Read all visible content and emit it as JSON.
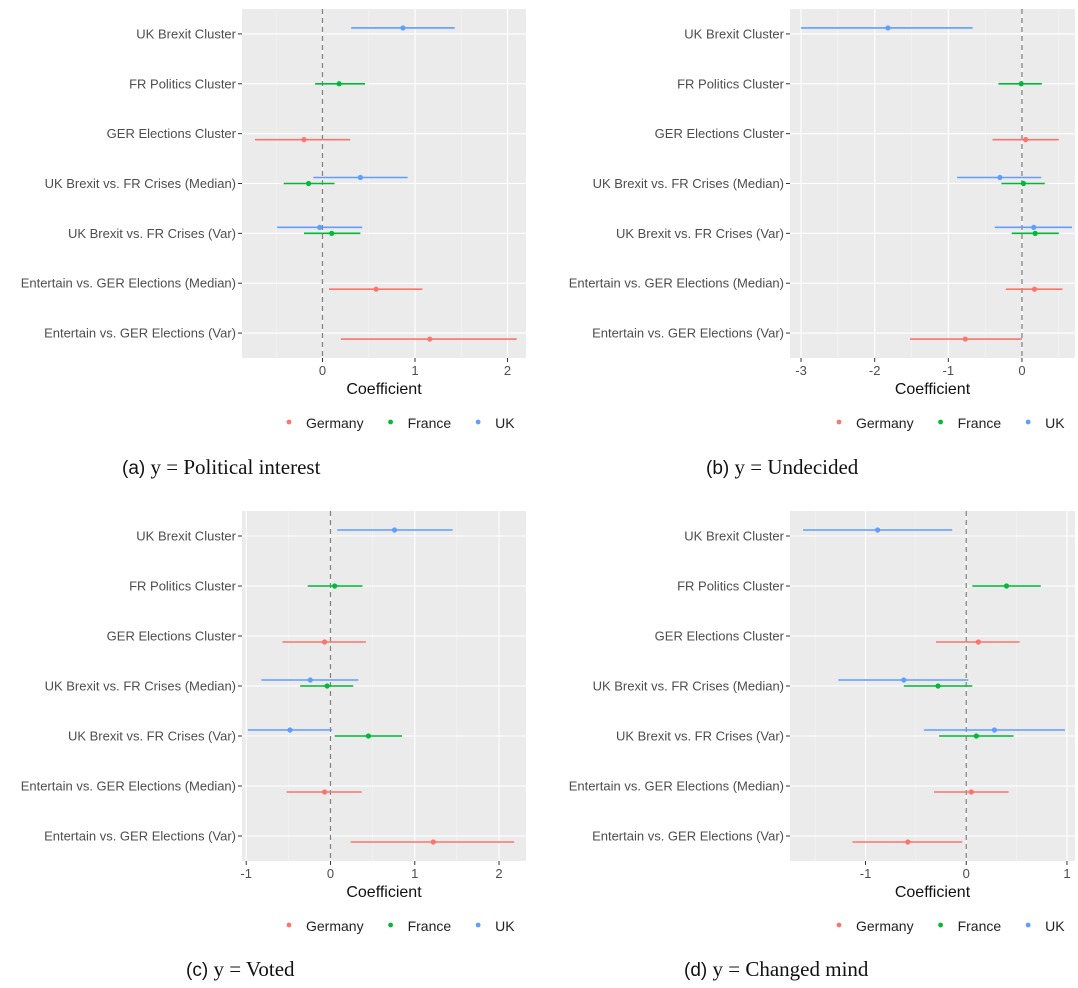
{
  "legend": [
    {
      "name": "Germany",
      "color": "#F8766D"
    },
    {
      "name": "France",
      "color": "#00BA38"
    },
    {
      "name": "UK",
      "color": "#619CFF"
    }
  ],
  "chart_data": [
    {
      "type": "scatter",
      "caption_prefix": "(a)",
      "caption": "y = Political interest",
      "xlabel": "Coefficient",
      "xlim": [
        -0.87,
        2.2
      ],
      "xticks": [
        0,
        1,
        2
      ],
      "reference_line": 0,
      "categories": [
        "UK Brexit Cluster",
        "FR Politics Cluster",
        "GER Elections Cluster",
        "UK Brexit vs. FR Crises (Median)",
        "UK Brexit vs. FR Crises (Var)",
        "Entertain vs. GER Elections (Median)",
        "Entertain vs. GER Elections (Var)"
      ],
      "series": [
        {
          "name": "Germany",
          "points": [
            {
              "category": "GER Elections Cluster",
              "estimate": -0.2,
              "low": -0.73,
              "high": 0.3
            },
            {
              "category": "Entertain vs. GER Elections (Median)",
              "estimate": 0.58,
              "low": 0.07,
              "high": 1.08
            },
            {
              "category": "Entertain vs. GER Elections (Var)",
              "estimate": 1.16,
              "low": 0.2,
              "high": 2.1
            }
          ]
        },
        {
          "name": "France",
          "points": [
            {
              "category": "FR Politics Cluster",
              "estimate": 0.18,
              "low": -0.08,
              "high": 0.46
            },
            {
              "category": "UK Brexit vs. FR Crises (Median)",
              "estimate": -0.15,
              "low": -0.42,
              "high": 0.13
            },
            {
              "category": "UK Brexit vs. FR Crises (Var)",
              "estimate": 0.1,
              "low": -0.2,
              "high": 0.41
            }
          ]
        },
        {
          "name": "UK",
          "points": [
            {
              "category": "UK Brexit Cluster",
              "estimate": 0.87,
              "low": 0.31,
              "high": 1.43
            },
            {
              "category": "UK Brexit vs. FR Crises (Median)",
              "estimate": 0.41,
              "low": -0.1,
              "high": 0.92
            },
            {
              "category": "UK Brexit vs. FR Crises (Var)",
              "estimate": -0.03,
              "low": -0.49,
              "high": 0.43
            }
          ]
        }
      ]
    },
    {
      "type": "scatter",
      "caption_prefix": "(b)",
      "caption": "y = Undecided",
      "xlabel": "Coefficient",
      "xlim": [
        -3.15,
        0.72
      ],
      "xticks": [
        -3,
        -2,
        -1,
        0
      ],
      "reference_line": 0,
      "categories": [
        "UK Brexit Cluster",
        "FR Politics Cluster",
        "GER Elections Cluster",
        "UK Brexit vs. FR Crises (Median)",
        "UK Brexit vs. FR Crises (Var)",
        "Entertain vs. GER Elections (Median)",
        "Entertain vs. GER Elections (Var)"
      ],
      "series": [
        {
          "name": "Germany",
          "points": [
            {
              "category": "GER Elections Cluster",
              "estimate": 0.05,
              "low": -0.4,
              "high": 0.5
            },
            {
              "category": "Entertain vs. GER Elections (Median)",
              "estimate": 0.17,
              "low": -0.22,
              "high": 0.55
            },
            {
              "category": "Entertain vs. GER Elections (Var)",
              "estimate": -0.77,
              "low": -1.52,
              "high": 0.0
            }
          ]
        },
        {
          "name": "France",
          "points": [
            {
              "category": "FR Politics Cluster",
              "estimate": -0.01,
              "low": -0.32,
              "high": 0.27
            },
            {
              "category": "UK Brexit vs. FR Crises (Median)",
              "estimate": 0.02,
              "low": -0.28,
              "high": 0.31
            },
            {
              "category": "UK Brexit vs. FR Crises (Var)",
              "estimate": 0.18,
              "low": -0.14,
              "high": 0.5
            }
          ]
        },
        {
          "name": "UK",
          "points": [
            {
              "category": "UK Brexit Cluster",
              "estimate": -1.82,
              "low": -3.0,
              "high": -0.67
            },
            {
              "category": "UK Brexit vs. FR Crises (Median)",
              "estimate": -0.3,
              "low": -0.88,
              "high": 0.26
            },
            {
              "category": "UK Brexit vs. FR Crises (Var)",
              "estimate": 0.16,
              "low": -0.37,
              "high": 0.68
            }
          ]
        }
      ]
    },
    {
      "type": "scatter",
      "caption_prefix": "(c)",
      "caption": "y = Voted",
      "xlabel": "Coefficient",
      "xlim": [
        -1.05,
        2.32
      ],
      "xticks": [
        -1,
        0,
        1,
        2
      ],
      "reference_line": 0,
      "categories": [
        "UK Brexit Cluster",
        "FR Politics Cluster",
        "GER Elections Cluster",
        "UK Brexit vs. FR Crises (Median)",
        "UK Brexit vs. FR Crises (Var)",
        "Entertain vs. GER Elections (Median)",
        "Entertain vs. GER Elections (Var)"
      ],
      "series": [
        {
          "name": "Germany",
          "points": [
            {
              "category": "GER Elections Cluster",
              "estimate": -0.07,
              "low": -0.57,
              "high": 0.42
            },
            {
              "category": "Entertain vs. GER Elections (Median)",
              "estimate": -0.07,
              "low": -0.52,
              "high": 0.37
            },
            {
              "category": "Entertain vs. GER Elections (Var)",
              "estimate": 1.22,
              "low": 0.24,
              "high": 2.18
            }
          ]
        },
        {
          "name": "France",
          "points": [
            {
              "category": "FR Politics Cluster",
              "estimate": 0.05,
              "low": -0.27,
              "high": 0.38
            },
            {
              "category": "UK Brexit vs. FR Crises (Median)",
              "estimate": -0.04,
              "low": -0.36,
              "high": 0.27
            },
            {
              "category": "UK Brexit vs. FR Crises (Var)",
              "estimate": 0.45,
              "low": 0.05,
              "high": 0.85
            }
          ]
        },
        {
          "name": "UK",
          "points": [
            {
              "category": "UK Brexit Cluster",
              "estimate": 0.76,
              "low": 0.08,
              "high": 1.45
            },
            {
              "category": "UK Brexit vs. FR Crises (Median)",
              "estimate": -0.24,
              "low": -0.82,
              "high": 0.33
            },
            {
              "category": "UK Brexit vs. FR Crises (Var)",
              "estimate": -0.48,
              "low": -0.98,
              "high": 0.02
            }
          ]
        }
      ]
    },
    {
      "type": "scatter",
      "caption_prefix": "(d)",
      "caption": "y = Changed mind",
      "xlabel": "Coefficient",
      "xlim": [
        -1.75,
        1.08
      ],
      "xticks": [
        -1,
        0,
        1
      ],
      "reference_line": 0,
      "categories": [
        "UK Brexit Cluster",
        "FR Politics Cluster",
        "GER Elections Cluster",
        "UK Brexit vs. FR Crises (Median)",
        "UK Brexit vs. FR Crises (Var)",
        "Entertain vs. GER Elections (Median)",
        "Entertain vs. GER Elections (Var)"
      ],
      "series": [
        {
          "name": "Germany",
          "points": [
            {
              "category": "GER Elections Cluster",
              "estimate": 0.12,
              "low": -0.3,
              "high": 0.53
            },
            {
              "category": "Entertain vs. GER Elections (Median)",
              "estimate": 0.05,
              "low": -0.32,
              "high": 0.42
            },
            {
              "category": "Entertain vs. GER Elections (Var)",
              "estimate": -0.58,
              "low": -1.13,
              "high": -0.04
            }
          ]
        },
        {
          "name": "France",
          "points": [
            {
              "category": "FR Politics Cluster",
              "estimate": 0.4,
              "low": 0.06,
              "high": 0.74
            },
            {
              "category": "UK Brexit vs. FR Crises (Median)",
              "estimate": -0.28,
              "low": -0.62,
              "high": 0.06
            },
            {
              "category": "UK Brexit vs. FR Crises (Var)",
              "estimate": 0.1,
              "low": -0.27,
              "high": 0.47
            }
          ]
        },
        {
          "name": "UK",
          "points": [
            {
              "category": "UK Brexit Cluster",
              "estimate": -0.88,
              "low": -1.62,
              "high": -0.14
            },
            {
              "category": "UK Brexit vs. FR Crises (Median)",
              "estimate": -0.62,
              "low": -1.27,
              "high": 0.02
            },
            {
              "category": "UK Brexit vs. FR Crises (Var)",
              "estimate": 0.28,
              "low": -0.42,
              "high": 0.98
            }
          ]
        }
      ]
    }
  ]
}
